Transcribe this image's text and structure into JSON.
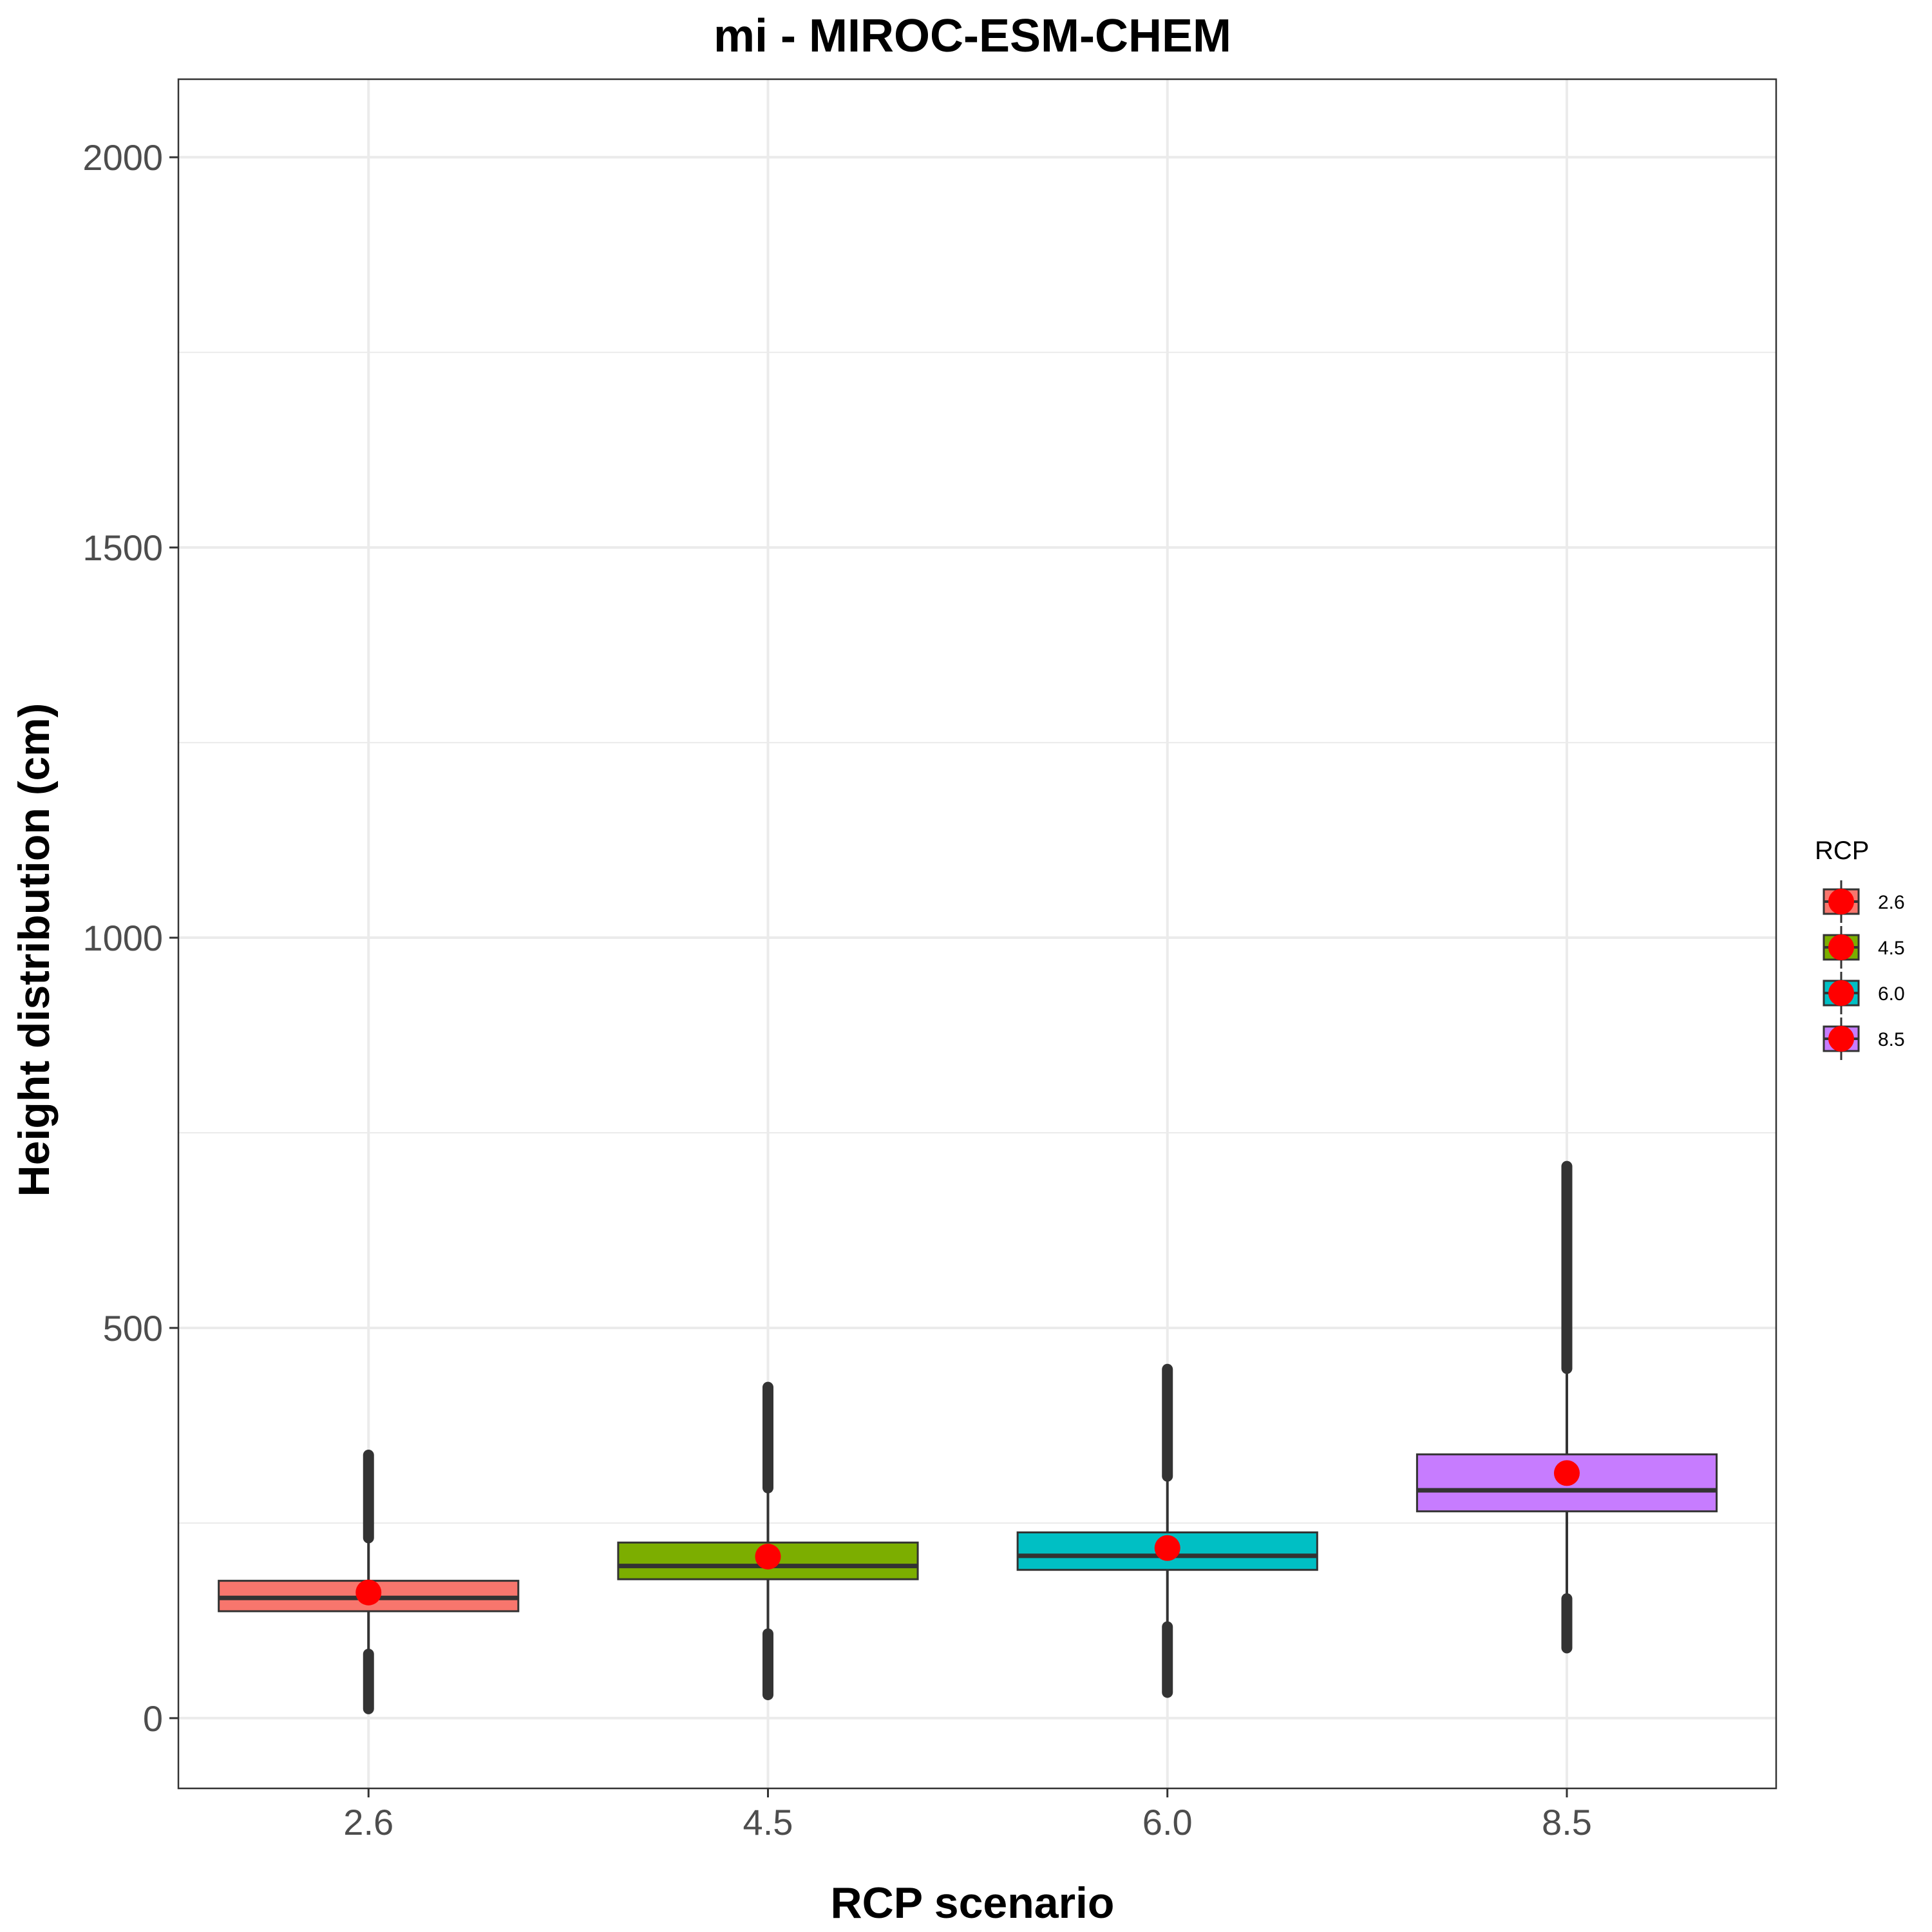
{
  "chart_data": {
    "type": "box",
    "title": "mi - MIROC-ESM-CHEM",
    "xlabel": "RCP scenario",
    "ylabel": "Height distribution (cm)",
    "categories": [
      "2.6",
      "4.5",
      "6.0",
      "8.5"
    ],
    "ylim": [
      -90,
      2100
    ],
    "yticks": [
      0,
      500,
      1000,
      1500,
      2000
    ],
    "grid": true,
    "legend": {
      "title": "RCP",
      "placement": "right",
      "entries": [
        "2.6",
        "4.5",
        "6.0",
        "8.5"
      ]
    },
    "colors": [
      "#F8766D",
      "#7CAE00",
      "#00BFC4",
      "#C77CFF"
    ],
    "mean_color": "#FF0000",
    "boxes": [
      {
        "category": "2.6",
        "q1": 137,
        "median": 154,
        "q3": 176,
        "mean": 161,
        "whisker_low": 82,
        "whisker_high": 231,
        "outliers_low": [
          12,
          82
        ],
        "outliers_high": [
          231,
          337
        ]
      },
      {
        "category": "4.5",
        "q1": 178,
        "median": 195,
        "q3": 225,
        "mean": 207,
        "whisker_low": 108,
        "whisker_high": 295,
        "outliers_low": [
          30,
          108
        ],
        "outliers_high": [
          295,
          424
        ]
      },
      {
        "category": "6.0",
        "q1": 190,
        "median": 208,
        "q3": 238,
        "mean": 218,
        "whisker_low": 117,
        "whisker_high": 310,
        "outliers_low": [
          33,
          117
        ],
        "outliers_high": [
          310,
          447
        ]
      },
      {
        "category": "8.5",
        "q1": 265,
        "median": 292,
        "q3": 338,
        "mean": 314,
        "whisker_low": 153,
        "whisker_high": 448,
        "outliers_low": [
          90,
          153
        ],
        "outliers_high": [
          448,
          707
        ]
      }
    ]
  }
}
